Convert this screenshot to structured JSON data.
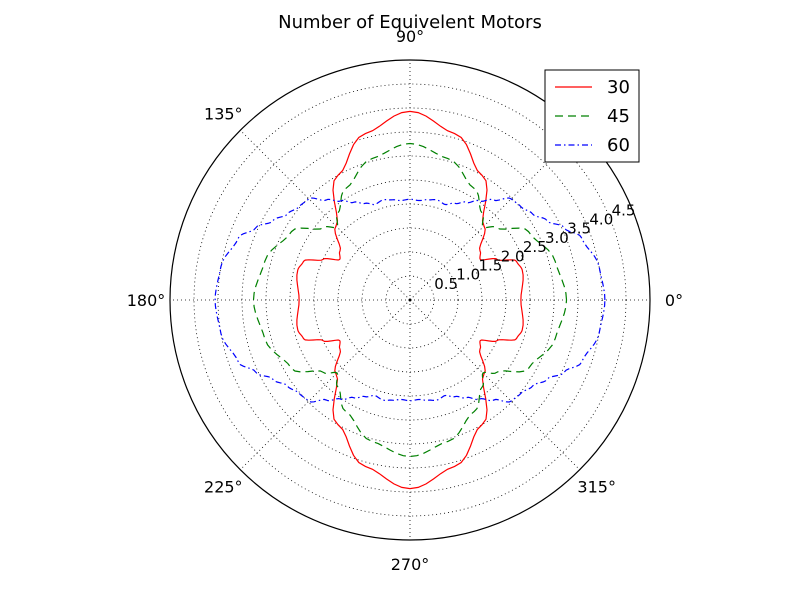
{
  "chart_data": {
    "type": "line",
    "projection": "polar",
    "title": "Number of Equivelent Motors",
    "theta_ticks": [
      {
        "deg": 0,
        "label": "0°"
      },
      {
        "deg": 45,
        "label": ""
      },
      {
        "deg": 90,
        "label": "90°"
      },
      {
        "deg": 135,
        "label": "135°"
      },
      {
        "deg": 180,
        "label": "180°"
      },
      {
        "deg": 225,
        "label": "225°"
      },
      {
        "deg": 270,
        "label": "270°"
      },
      {
        "deg": 315,
        "label": "315°"
      }
    ],
    "r_ticks": [
      0.5,
      1.0,
      1.5,
      2.0,
      2.5,
      3.0,
      3.5,
      4.0,
      4.5
    ],
    "r_tick_labels": [
      "0.5",
      "1.0",
      "1.5",
      "2.0",
      "2.5",
      "3.0",
      "3.5",
      "4.0",
      "4.5"
    ],
    "rlim": [
      0,
      5.0
    ],
    "grid": true,
    "legend": {
      "position": "top-right"
    },
    "series": [
      {
        "name": "30",
        "color": "#ff0000",
        "dash": "",
        "theta": [
          0,
          15,
          20,
          25,
          30,
          35,
          45,
          60,
          75,
          90,
          105,
          120,
          135,
          145,
          150,
          155,
          160,
          165,
          180,
          195,
          200,
          205,
          210,
          215,
          225,
          240,
          255,
          270,
          285,
          300,
          315,
          325,
          330,
          335,
          340,
          345,
          360
        ],
        "r": [
          2.31,
          2.42,
          2.36,
          2.0,
          1.69,
          1.78,
          2.18,
          3.0,
          3.59,
          3.93,
          3.59,
          3.0,
          2.18,
          1.78,
          1.69,
          2.0,
          2.36,
          2.42,
          2.31,
          2.42,
          2.36,
          2.0,
          1.69,
          1.78,
          2.18,
          3.0,
          3.59,
          3.93,
          3.59,
          3.0,
          2.18,
          1.78,
          1.69,
          2.0,
          2.36,
          2.42,
          2.31
        ]
      },
      {
        "name": "45",
        "color": "#008000",
        "dash": "8,5",
        "theta": [
          0,
          15,
          30,
          40,
          45,
          50,
          60,
          75,
          90,
          105,
          120,
          130,
          135,
          140,
          150,
          165,
          180,
          195,
          210,
          220,
          225,
          230,
          240,
          255,
          270,
          285,
          300,
          310,
          315,
          320,
          330,
          345,
          360
        ],
        "r": [
          3.26,
          3.13,
          2.85,
          2.35,
          2.15,
          2.35,
          2.68,
          3.05,
          3.26,
          3.05,
          2.68,
          2.35,
          2.15,
          2.35,
          2.85,
          3.13,
          3.26,
          3.13,
          2.85,
          2.35,
          2.15,
          2.35,
          2.68,
          3.05,
          3.26,
          3.05,
          2.68,
          2.35,
          2.15,
          2.35,
          2.85,
          3.13,
          3.26
        ]
      },
      {
        "name": "60",
        "color": "#0000ff",
        "dash": "6,3,1.5,3",
        "theta": [
          0,
          10,
          20,
          25,
          30,
          35,
          40,
          45,
          50,
          55,
          60,
          65,
          70,
          75,
          80,
          85,
          90,
          95,
          100,
          105,
          110,
          115,
          120,
          125,
          130,
          135,
          140,
          145,
          150,
          155,
          160,
          170,
          180,
          190,
          200,
          205,
          210,
          215,
          220,
          225,
          230,
          235,
          240,
          245,
          250,
          255,
          260,
          265,
          270,
          275,
          280,
          285,
          290,
          295,
          300,
          305,
          310,
          315,
          320,
          325,
          330,
          335,
          340,
          350,
          360
        ],
        "r": [
          4.06,
          4.0,
          3.8,
          3.55,
          3.3,
          3.12,
          3.02,
          2.98,
          2.72,
          2.52,
          2.35,
          2.22,
          2.12,
          2.16,
          2.12,
          2.08,
          2.1,
          2.08,
          2.12,
          2.16,
          2.12,
          2.22,
          2.35,
          2.52,
          2.72,
          2.98,
          3.02,
          3.12,
          3.3,
          3.55,
          3.8,
          4.0,
          4.06,
          4.0,
          3.8,
          3.55,
          3.3,
          3.12,
          3.02,
          2.98,
          2.72,
          2.52,
          2.35,
          2.22,
          2.12,
          2.16,
          2.12,
          2.08,
          2.1,
          2.08,
          2.12,
          2.16,
          2.12,
          2.22,
          2.35,
          2.52,
          2.72,
          2.98,
          3.02,
          3.12,
          3.3,
          3.55,
          3.8,
          4.0,
          4.06
        ]
      }
    ]
  }
}
